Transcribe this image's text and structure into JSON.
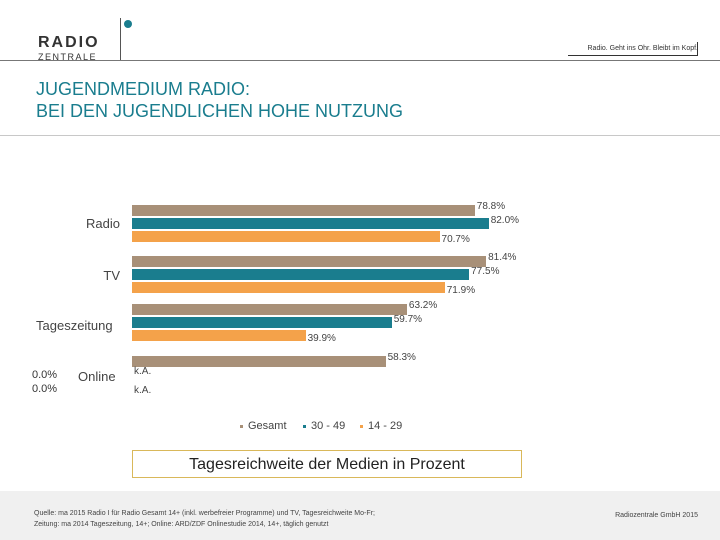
{
  "header": {
    "logo_top": "RADIO",
    "logo_bottom": "ZENTRALE",
    "tagline": "Radio. Geht ins Ohr. Bleibt im Kopf."
  },
  "title": {
    "line1": "JUGENDMEDIUM RADIO:",
    "line2": "BEI DEN JUGENDLICHEN HOHE NUTZUNG"
  },
  "side_values": [
    "0.0%",
    "0.0%"
  ],
  "chart_data": {
    "type": "bar",
    "orientation": "horizontal",
    "categories": [
      "Radio",
      "TV",
      "Tageszeitung",
      "Online"
    ],
    "series": [
      {
        "name": "Gesamt",
        "color": "#a89078",
        "values": [
          78.8,
          81.4,
          63.2,
          58.3
        ],
        "labels": [
          "78.8%",
          "81.4%",
          "63.2%",
          "58.3%"
        ]
      },
      {
        "name": "30 - 49",
        "color": "#1a7d8e",
        "values": [
          82.0,
          77.5,
          59.7,
          null
        ],
        "labels": [
          "82.0%",
          "77.5%",
          "59.7%",
          "k.A."
        ]
      },
      {
        "name": "14 - 29",
        "color": "#f4a24a",
        "values": [
          70.7,
          71.9,
          39.9,
          null
        ],
        "labels": [
          "70.7%",
          "71.9%",
          "39.9%",
          "k.A."
        ]
      }
    ],
    "xlim": [
      0,
      100
    ],
    "caption": "Tagesreichweite der Medien in Prozent"
  },
  "footer": {
    "source_line1": "Quelle: ma 2015 Radio I für Radio Gesamt 14+ (inkl. werbefreier Programme) und TV, Tagesreichweite Mo-Fr;",
    "source_line2": "Zeitung: ma 2014 Tageszeitung, 14+; Online: ARD/ZDF Onlinestudie 2014, 14+, täglich genutzt",
    "copyright": "Radiozentrale GmbH 2015"
  }
}
